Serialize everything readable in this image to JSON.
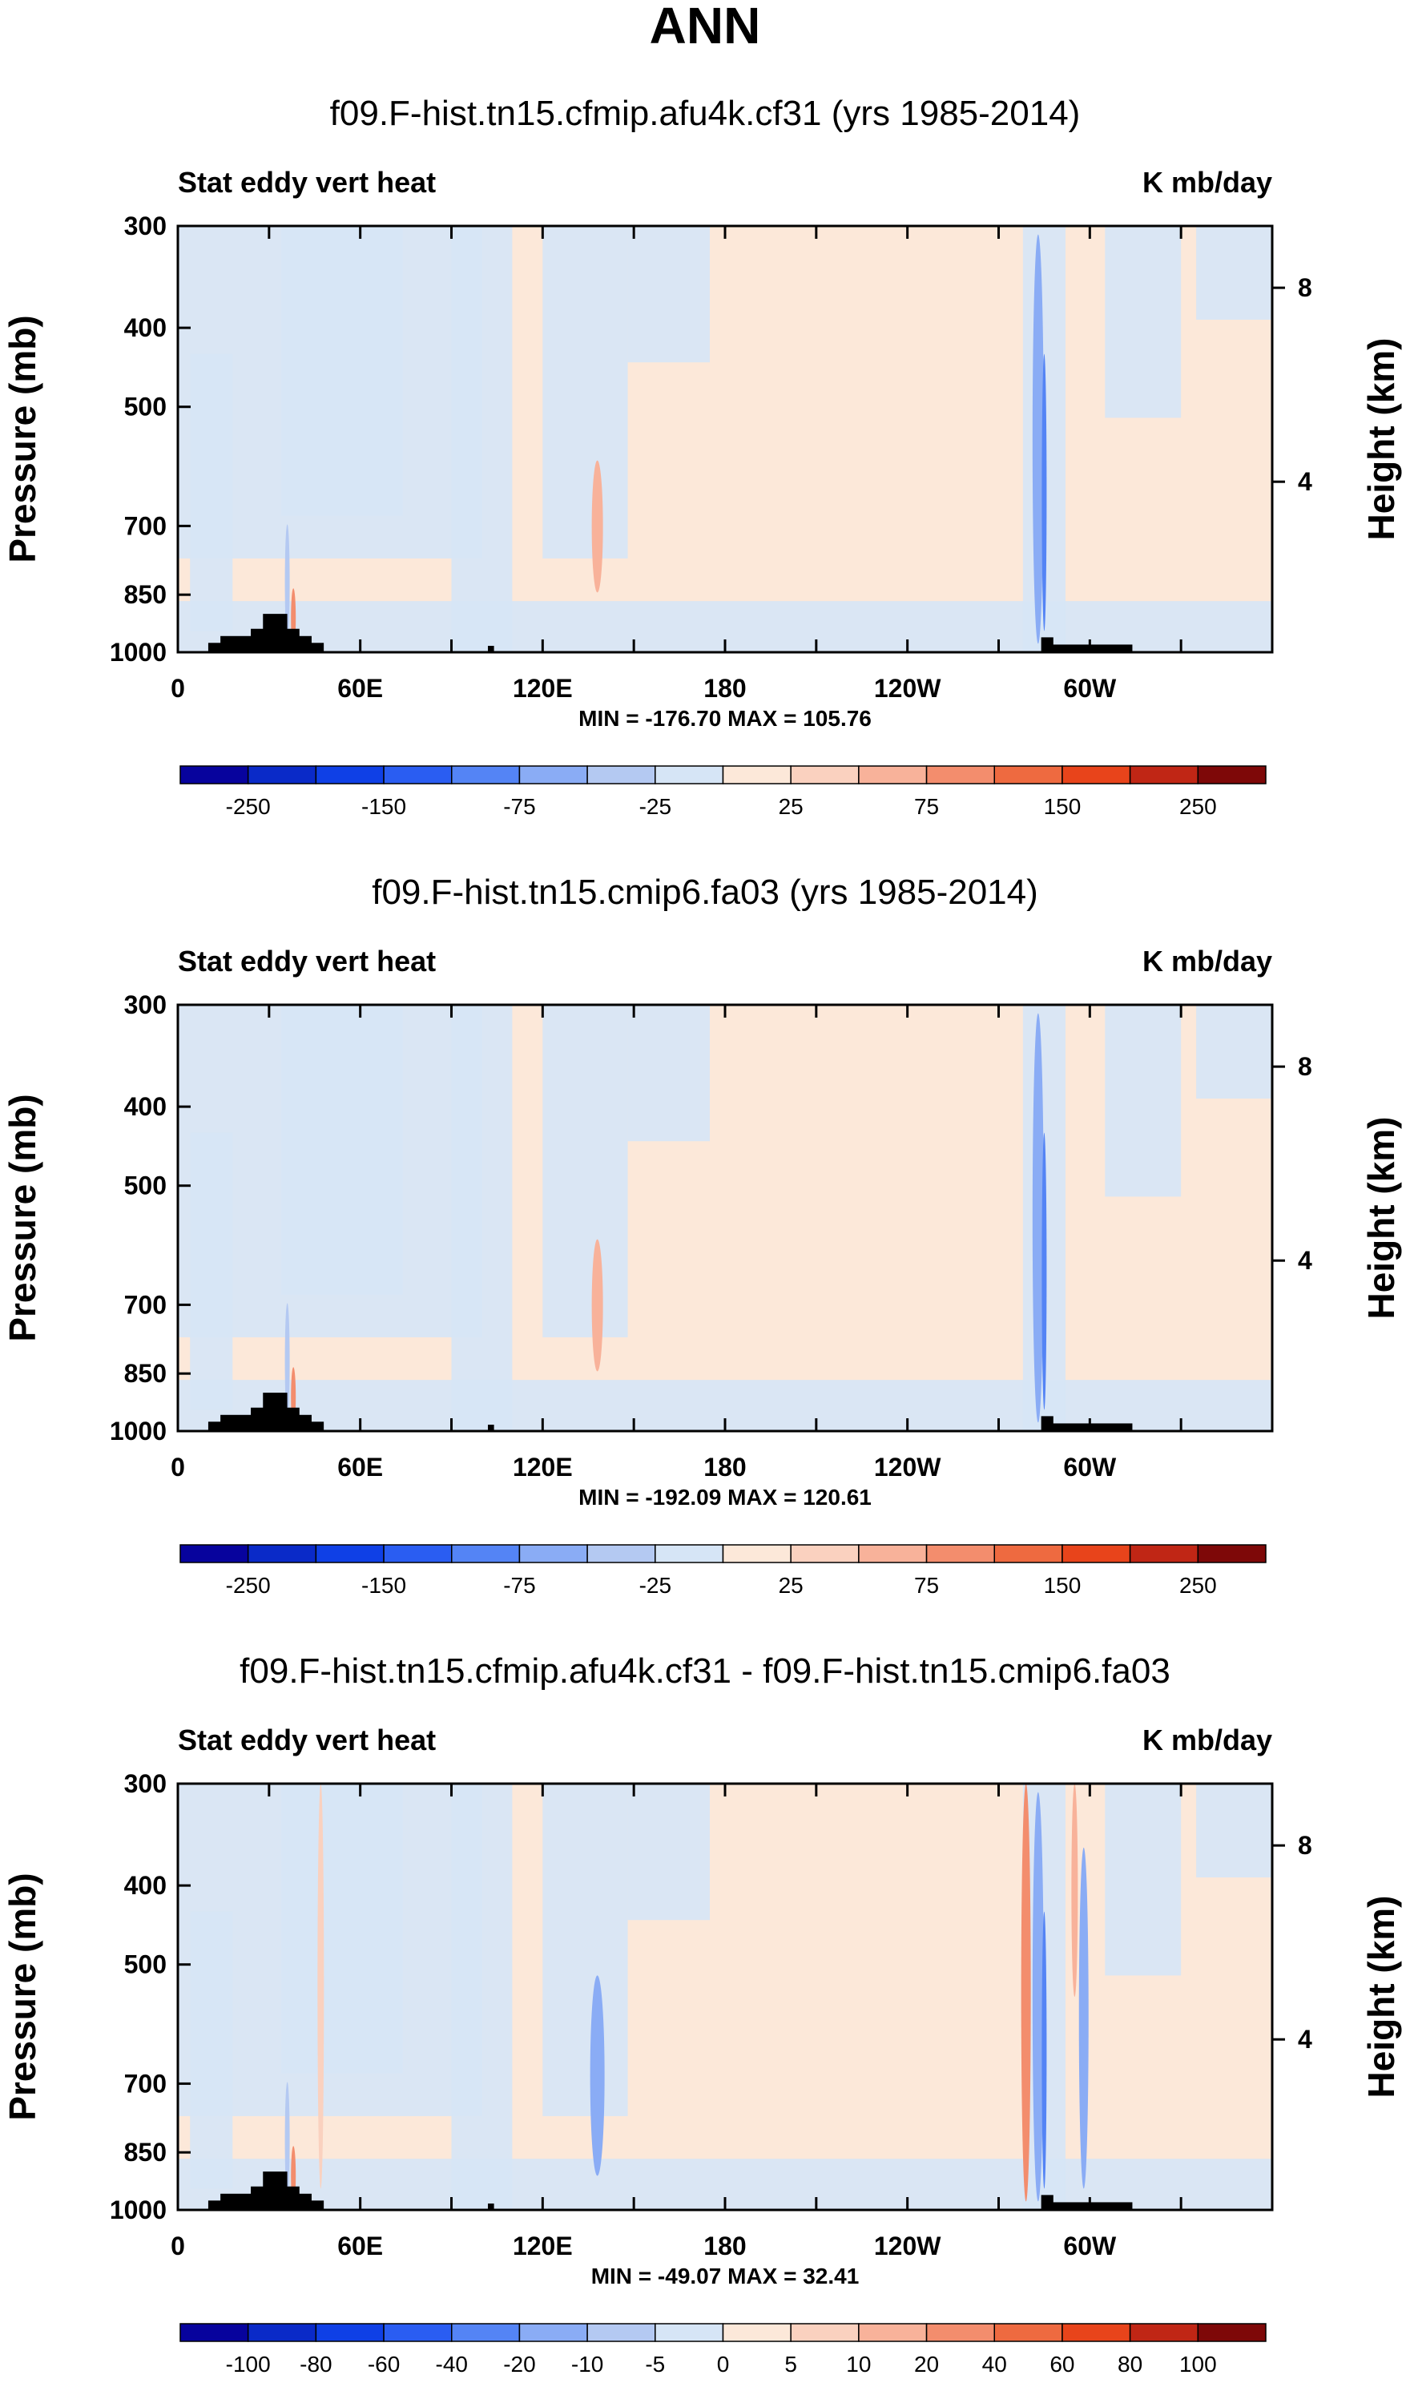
{
  "figure_title": "ANN",
  "chart_data": [
    {
      "type": "heatmap",
      "title": "f09.F-hist.tn15.cfmip.afu4k.cf31 (yrs 1985-2014)",
      "left_label": "Stat eddy vert heat",
      "right_label": "K mb/day",
      "ylabel": "Pressure (mb)",
      "y2label": "Height (km)",
      "xlabel": "",
      "x_ticks": [
        "0",
        "60E",
        "120E",
        "180",
        "120W",
        "60W"
      ],
      "y_ticks": [
        "300",
        "400",
        "500",
        "700",
        "850",
        "1000"
      ],
      "y2_ticks": [
        "8",
        "4"
      ],
      "min_max_text": "MIN = -176.70  MAX = 105.76",
      "colorbar_ticks": [
        "-250",
        "-150",
        "-75",
        "-25",
        "25",
        "75",
        "150",
        "250"
      ],
      "colorbar_colors": [
        "#07039d",
        "#0a2ac8",
        "#0f40e6",
        "#2a5df2",
        "#5484f5",
        "#8aacf5",
        "#b4c9f2",
        "#d6e5f6",
        "#fce8d9",
        "#fad1bf",
        "#f8b29a",
        "#f38d6d",
        "#ee6a40",
        "#e8441b",
        "#c02615",
        "#7e0808"
      ],
      "min": -176.7,
      "max": 105.76
    },
    {
      "type": "heatmap",
      "title": "f09.F-hist.tn15.cmip6.fa03 (yrs 1985-2014)",
      "left_label": "Stat eddy vert heat",
      "right_label": "K mb/day",
      "ylabel": "Pressure (mb)",
      "y2label": "Height (km)",
      "xlabel": "",
      "x_ticks": [
        "0",
        "60E",
        "120E",
        "180",
        "120W",
        "60W"
      ],
      "y_ticks": [
        "300",
        "400",
        "500",
        "700",
        "850",
        "1000"
      ],
      "y2_ticks": [
        "8",
        "4"
      ],
      "min_max_text": "MIN = -192.09  MAX = 120.61",
      "colorbar_ticks": [
        "-250",
        "-150",
        "-75",
        "-25",
        "25",
        "75",
        "150",
        "250"
      ],
      "colorbar_colors": [
        "#07039d",
        "#0a2ac8",
        "#0f40e6",
        "#2a5df2",
        "#5484f5",
        "#8aacf5",
        "#b4c9f2",
        "#d6e5f6",
        "#fce8d9",
        "#fad1bf",
        "#f8b29a",
        "#f38d6d",
        "#ee6a40",
        "#e8441b",
        "#c02615",
        "#7e0808"
      ],
      "min": -192.09,
      "max": 120.61
    },
    {
      "type": "heatmap",
      "title": "f09.F-hist.tn15.cfmip.afu4k.cf31 - f09.F-hist.tn15.cmip6.fa03",
      "left_label": "Stat eddy vert heat",
      "right_label": "K mb/day",
      "ylabel": "Pressure (mb)",
      "y2label": "Height (km)",
      "xlabel": "",
      "x_ticks": [
        "0",
        "60E",
        "120E",
        "180",
        "120W",
        "60W"
      ],
      "y_ticks": [
        "300",
        "400",
        "500",
        "700",
        "850",
        "1000"
      ],
      "y2_ticks": [
        "8",
        "4"
      ],
      "min_max_text": "MIN = -49.07  MAX = 32.41",
      "colorbar_ticks": [
        "-100",
        "-80",
        "-60",
        "-40",
        "-20",
        "-10",
        "-5",
        "0",
        "5",
        "10",
        "20",
        "40",
        "60",
        "80",
        "100"
      ],
      "colorbar_colors": [
        "#07039d",
        "#0a2ac8",
        "#0f40e6",
        "#2a5df2",
        "#5484f5",
        "#8aacf5",
        "#b4c9f2",
        "#d6e5f6",
        "#fce8d9",
        "#fad1bf",
        "#f8b29a",
        "#f38d6d",
        "#ee6a40",
        "#e8441b",
        "#c02615",
        "#7e0808"
      ],
      "min": -49.07,
      "max": 32.41
    }
  ]
}
